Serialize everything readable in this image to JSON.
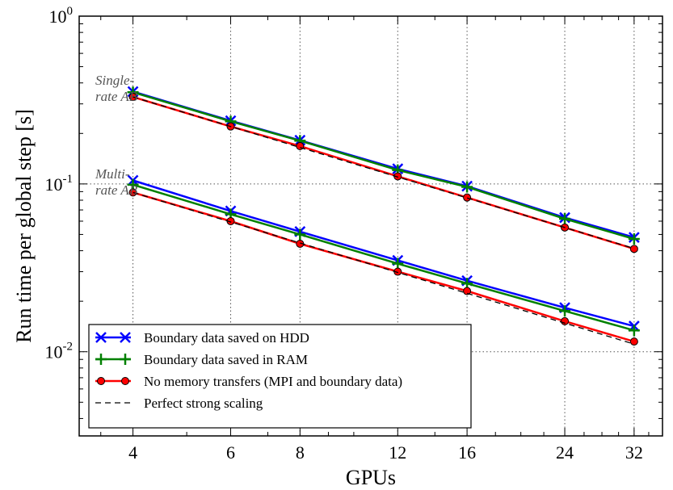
{
  "chart_data": {
    "type": "line",
    "xlabel": "GPUs",
    "ylabel": "Run time per global step [s]",
    "xscale": "log",
    "yscale": "log",
    "xlim": [
      3.2,
      36
    ],
    "ylim": [
      0.00315,
      1.0
    ],
    "x": [
      4,
      6,
      8,
      12,
      16,
      24,
      32
    ],
    "x_tick_labels": [
      "4",
      "6",
      "8",
      "12",
      "16",
      "24",
      "32"
    ],
    "y_ticks": [
      {
        "value": 1.0,
        "base": "10",
        "exp": "0"
      },
      {
        "value": 0.1,
        "base": "10",
        "exp": "-1"
      },
      {
        "value": 0.01,
        "base": "10",
        "exp": "-2"
      }
    ],
    "grid": "dotted",
    "legend_position": "lower-left",
    "annotations": [
      {
        "lines": [
          "Single-",
          "rate AB"
        ]
      },
      {
        "lines": [
          "Multi-",
          "rate AB"
        ]
      }
    ],
    "series": [
      {
        "name": "Boundary data saved on HDD",
        "color": "#0000ff",
        "marker": "x",
        "line": "solid",
        "groups": {
          "single_rate": [
            0.355,
            0.238,
            0.182,
            0.123,
            0.097,
            0.063,
            0.048
          ],
          "multi_rate": [
            0.105,
            0.069,
            0.052,
            0.035,
            0.0265,
            0.0183,
            0.0142
          ]
        }
      },
      {
        "name": "Boundary data saved in RAM",
        "color": "#008000",
        "marker": "+",
        "line": "solid",
        "groups": {
          "single_rate": [
            0.352,
            0.236,
            0.181,
            0.121,
            0.096,
            0.062,
            0.047
          ],
          "multi_rate": [
            0.099,
            0.066,
            0.05,
            0.0335,
            0.0255,
            0.0175,
            0.0134
          ]
        }
      },
      {
        "name": "No memory transfers (MPI and boundary data)",
        "color": "#ff0000",
        "marker": "o",
        "line": "solid",
        "groups": {
          "single_rate": [
            0.33,
            0.22,
            0.168,
            0.111,
            0.083,
            0.055,
            0.041
          ],
          "multi_rate": [
            0.089,
            0.06,
            0.044,
            0.03,
            0.023,
            0.0152,
            0.0115
          ]
        }
      },
      {
        "name": "Perfect strong scaling",
        "color": "#000000",
        "marker": "none",
        "line": "dashed",
        "groups": {
          "single_rate": [
            0.33,
            0.22,
            0.165,
            0.11,
            0.0825,
            0.055,
            0.04125
          ],
          "multi_rate": [
            0.089,
            0.0593,
            0.0445,
            0.0297,
            0.0223,
            0.0148,
            0.0111
          ]
        }
      }
    ]
  }
}
